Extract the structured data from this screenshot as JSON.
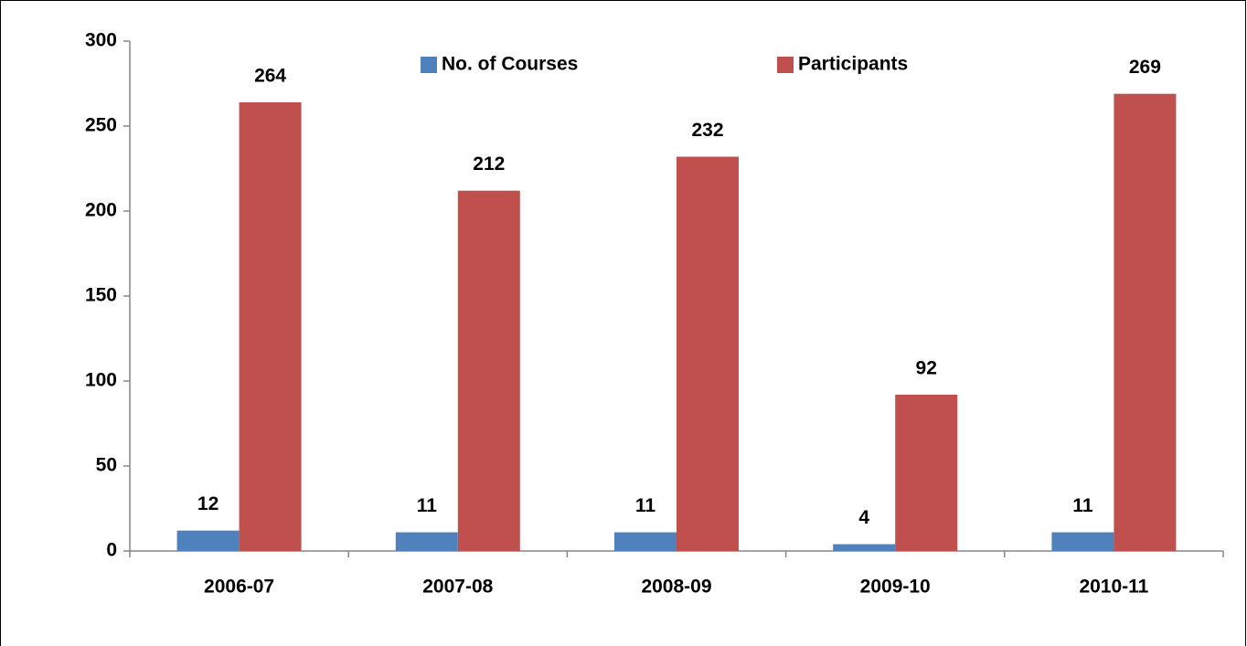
{
  "chart_data": {
    "type": "bar",
    "categories": [
      "2006-07",
      "2007-08",
      "2008-09",
      "2009-10",
      "2010-11"
    ],
    "series": [
      {
        "name": "No. of Courses",
        "color": "#4f81bd",
        "values": [
          12,
          11,
          11,
          4,
          11
        ]
      },
      {
        "name": "Participants",
        "color": "#c0504d",
        "values": [
          264,
          212,
          232,
          92,
          269
        ]
      }
    ],
    "ylim": [
      0,
      300
    ],
    "yticks": [
      0,
      50,
      100,
      150,
      200,
      250,
      300
    ],
    "grid": false,
    "legend": "top"
  }
}
